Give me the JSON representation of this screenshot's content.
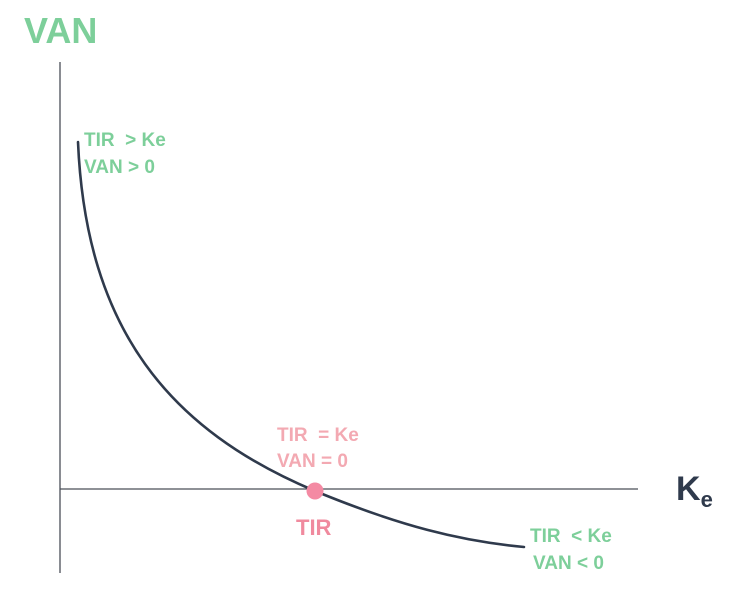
{
  "axes": {
    "y_label": "VAN",
    "x_label_main": "K",
    "x_label_sub": "e"
  },
  "annotations": {
    "left_line1": "TIR  > Ke",
    "left_line2": "VAN > 0",
    "middle_line1": "TIR  = Ke",
    "middle_line2": "VAN = 0",
    "right_line1": "TIR  < Ke",
    "right_line2": "VAN < 0",
    "point_label": "TIR"
  },
  "colors": {
    "green": "#7dcf9a",
    "pink_light": "#f3a9b2",
    "pink_strong": "#f08a9e",
    "dot": "#f48aa3",
    "curve": "#2f3a4c",
    "axis": "#4a4f58",
    "k_label": "#2f3a4c"
  }
}
